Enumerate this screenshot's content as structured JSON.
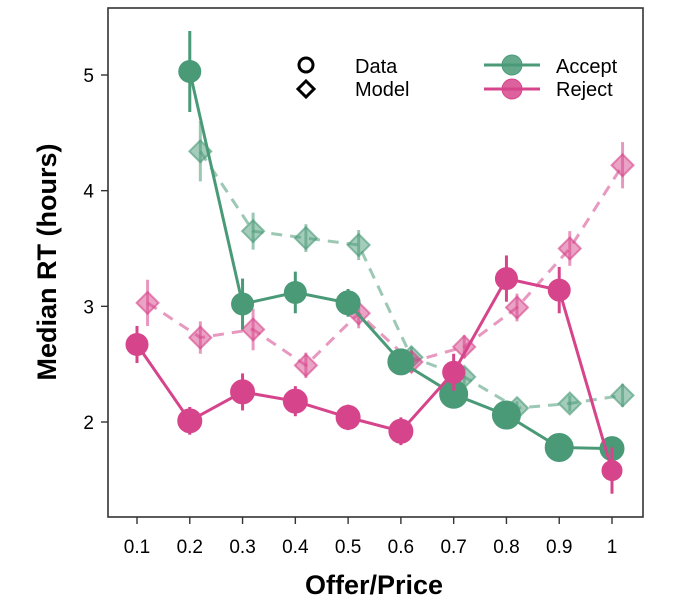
{
  "chart_data": {
    "type": "line",
    "xlabel": "Offer/Price",
    "ylabel": "Median RT (hours)",
    "xlim": [
      0.05,
      1.05
    ],
    "ylim": [
      1.15,
      5.6
    ],
    "x_ticks": [
      0.1,
      0.2,
      0.3,
      0.4,
      0.5,
      0.6,
      0.7,
      0.8,
      0.9,
      1.0
    ],
    "x_tick_labels": [
      "0.1",
      "0.2",
      "0.3",
      "0.4",
      "0.5",
      "0.6",
      "0.7",
      "0.8",
      "0.9",
      "1"
    ],
    "y_ticks": [
      2,
      3,
      4,
      5
    ],
    "y_tick_labels": [
      "2",
      "3",
      "4",
      "5"
    ],
    "grid": false,
    "legend": {
      "markers": [
        {
          "label": "Data",
          "marker": "circle"
        },
        {
          "label": "Model",
          "marker": "diamond"
        }
      ],
      "series": [
        {
          "label": "Accept",
          "color": "#4a9a78"
        },
        {
          "label": "Reject",
          "color": "#d6458b"
        }
      ]
    },
    "series": [
      {
        "name": "Accept",
        "kind": "Data",
        "color": "#4a9a78",
        "points": [
          {
            "x": 0.2,
            "y": 5.03,
            "err": 0.35,
            "size": 11
          },
          {
            "x": 0.3,
            "y": 3.02,
            "err": 0.22,
            "size": 11
          },
          {
            "x": 0.4,
            "y": 3.12,
            "err": 0.18,
            "size": 11
          },
          {
            "x": 0.5,
            "y": 3.03,
            "err": 0.12,
            "size": 12
          },
          {
            "x": 0.6,
            "y": 2.52,
            "err": 0.08,
            "size": 13
          },
          {
            "x": 0.7,
            "y": 2.24,
            "err": 0.06,
            "size": 14
          },
          {
            "x": 0.8,
            "y": 2.06,
            "err": 0.05,
            "size": 14
          },
          {
            "x": 0.9,
            "y": 1.78,
            "err": 0.04,
            "size": 14
          },
          {
            "x": 1.0,
            "y": 1.77,
            "err": 0.05,
            "size": 12
          }
        ]
      },
      {
        "name": "Reject",
        "kind": "Data",
        "color": "#d6458b",
        "points": [
          {
            "x": 0.1,
            "y": 2.67,
            "err": 0.16,
            "size": 11
          },
          {
            "x": 0.2,
            "y": 2.01,
            "err": 0.12,
            "size": 12
          },
          {
            "x": 0.3,
            "y": 2.26,
            "err": 0.16,
            "size": 12
          },
          {
            "x": 0.4,
            "y": 2.18,
            "err": 0.13,
            "size": 12
          },
          {
            "x": 0.5,
            "y": 2.04,
            "err": 0.11,
            "size": 12
          },
          {
            "x": 0.6,
            "y": 1.92,
            "err": 0.12,
            "size": 12
          },
          {
            "x": 0.7,
            "y": 2.43,
            "err": 0.16,
            "size": 11
          },
          {
            "x": 0.8,
            "y": 3.24,
            "err": 0.2,
            "size": 11
          },
          {
            "x": 0.9,
            "y": 3.14,
            "err": 0.2,
            "size": 11
          },
          {
            "x": 1.0,
            "y": 1.58,
            "err": 0.2,
            "size": 10
          }
        ]
      },
      {
        "name": "Accept",
        "kind": "Model",
        "color": "#4a9a78",
        "points": [
          {
            "x": 0.22,
            "y": 4.34,
            "err": 0.26
          },
          {
            "x": 0.32,
            "y": 3.65,
            "err": 0.16
          },
          {
            "x": 0.42,
            "y": 3.59,
            "err": 0.12
          },
          {
            "x": 0.52,
            "y": 3.53,
            "err": 0.13
          },
          {
            "x": 0.62,
            "y": 2.56,
            "err": 0.09
          },
          {
            "x": 0.72,
            "y": 2.39,
            "err": 0.08
          },
          {
            "x": 0.82,
            "y": 2.12,
            "err": 0.06
          },
          {
            "x": 0.92,
            "y": 2.16,
            "err": 0.07
          },
          {
            "x": 1.02,
            "y": 2.23,
            "err": 0.1
          }
        ]
      },
      {
        "name": "Reject",
        "kind": "Model",
        "color": "#d6458b",
        "points": [
          {
            "x": 0.12,
            "y": 3.03,
            "err": 0.2
          },
          {
            "x": 0.22,
            "y": 2.73,
            "err": 0.14
          },
          {
            "x": 0.32,
            "y": 2.8,
            "err": 0.18
          },
          {
            "x": 0.42,
            "y": 2.49,
            "err": 0.11
          },
          {
            "x": 0.52,
            "y": 2.94,
            "err": 0.13
          },
          {
            "x": 0.62,
            "y": 2.52,
            "err": 0.09
          },
          {
            "x": 0.72,
            "y": 2.65,
            "err": 0.1
          },
          {
            "x": 0.82,
            "y": 2.99,
            "err": 0.12
          },
          {
            "x": 0.92,
            "y": 3.5,
            "err": 0.15
          },
          {
            "x": 1.02,
            "y": 4.22,
            "err": 0.2
          }
        ]
      }
    ]
  }
}
